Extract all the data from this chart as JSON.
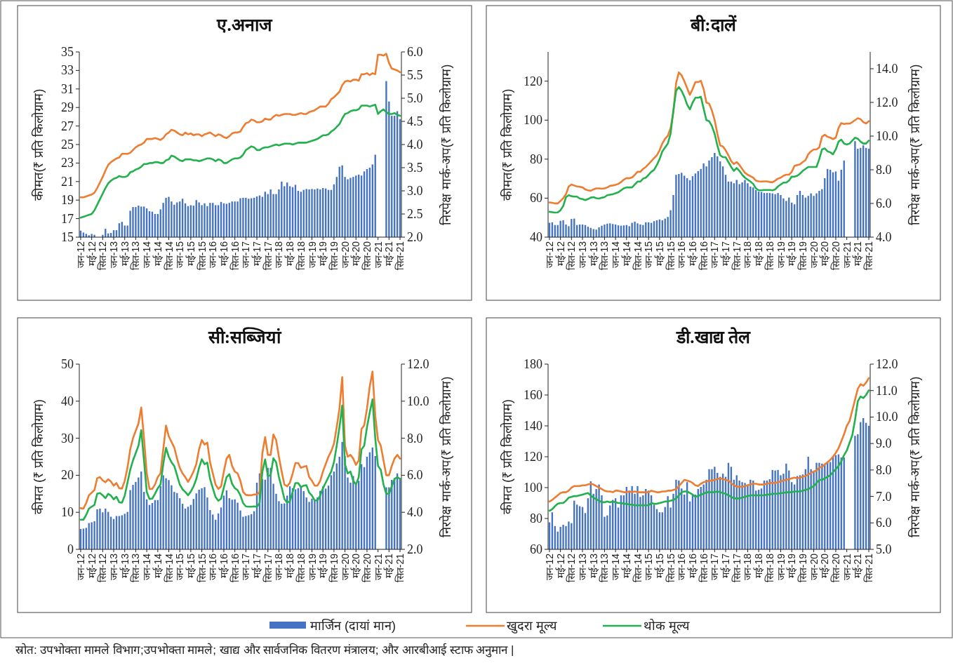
{
  "chart_data": [
    {
      "type": "bar",
      "title": "ए.अनाज",
      "ylabel": "कीमत(₹ प्रति किलोग्राम)",
      "y2label": "निरपेक्ष मार्क-अप(₹ प्रति किलोग्राम)",
      "legend": "bottom",
      "annotations": [
        "स्रोत: उपभोक्ता मामले विभाग;उपभोक्ता मामले; खाद्य और सार्वजनिक वितरण मंत्रालय; और आरबीआई स्टाफ अनुमान |"
      ],
      "categories": [
        "जन-12",
        null,
        null,
        null,
        "मई-12",
        null,
        null,
        null,
        "सित-12",
        null,
        null,
        null,
        "जन-13",
        null,
        null,
        null,
        "मई-13",
        null,
        null,
        null,
        "सित-13",
        null,
        null,
        null,
        "जन-14",
        null,
        null,
        null,
        "मई-14",
        null,
        null,
        null,
        "सित-14",
        null,
        null,
        null,
        "जन-15",
        null,
        null,
        null,
        "मई-15",
        null,
        null,
        null,
        "सित-15",
        null,
        null,
        null,
        "जन-16",
        null,
        null,
        null,
        "मई-16",
        null,
        null,
        null,
        "सित-16",
        null,
        null,
        null,
        "जन-17",
        null,
        null,
        null,
        "मई-17",
        null,
        null,
        null,
        "सित-17",
        null,
        null,
        null,
        "जन-18",
        null,
        null,
        null,
        "मई-18",
        null,
        null,
        null,
        "सित-18",
        null,
        null,
        null,
        "जन-19",
        null,
        null,
        null,
        "मई-19",
        null,
        null,
        null,
        "सित-19",
        null,
        null,
        null,
        "जन-20",
        null,
        null,
        null,
        "मई-20",
        null,
        null,
        null,
        "सित-20",
        null,
        null,
        null,
        "जन-21",
        null,
        null,
        null,
        "मई-21",
        null,
        null,
        null,
        "सित-21"
      ],
      "ylim": [
        15,
        35
      ],
      "yticks": [
        15,
        17,
        19,
        21,
        23,
        25,
        27,
        29,
        31,
        33,
        35
      ],
      "y2lim": [
        2,
        6
      ],
      "y2ticks": [
        {
          "value": 2,
          "label": "2.0"
        },
        2.5,
        {
          "value": 3,
          "label": "3.0"
        },
        3.5,
        {
          "value": 4,
          "label": "4.0"
        },
        4.5,
        {
          "value": 5,
          "label": "5.0"
        },
        5.5,
        {
          "value": 6,
          "label": "6.0"
        }
      ],
      "series": [
        {
          "name": "मार्जिन (दायां मान)",
          "type": "bar",
          "axis": "y2",
          "color": "#4472c4",
          "values": [
            2.14,
            2.1,
            2.07,
            2.04,
            2.07,
            2.05,
            null,
            null,
            2.05,
            2.18,
            2.08,
            2.09,
            2.15,
            2.15,
            2.3,
            2.33,
            2.25,
            2.25,
            2.57,
            2.65,
            2.65,
            2.68,
            2.66,
            2.66,
            2.62,
            2.56,
            2.55,
            2.5,
            2.5,
            2.6,
            2.74,
            2.85,
            2.87,
            2.77,
            2.7,
            2.75,
            2.77,
            2.83,
            2.73,
            2.67,
            2.69,
            2.68,
            2.8,
            2.75,
            2.69,
            2.73,
            2.67,
            2.74,
            2.74,
            2.69,
            2.69,
            2.76,
            2.73,
            2.72,
            2.74,
            2.77,
            2.77,
            2.77,
            2.84,
            2.85,
            2.85,
            2.83,
            2.84,
            2.85,
            2.88,
            2.9,
            2.87,
            2.98,
            2.93,
            3.03,
            2.93,
            2.93,
            3.03,
            3.2,
            3.1,
            3.18,
            3.1,
            3.08,
            3.13,
            3.0,
            2.98,
            3.02,
            3.04,
            3.03,
            3.04,
            3.03,
            3.05,
            3.03,
            3.06,
            3.05,
            3.02,
            3.02,
            3.14,
            3.3,
            3.52,
            3.55,
            3.3,
            3.25,
            3.28,
            3.3,
            3.33,
            3.35,
            3.33,
            3.42,
            3.47,
            3.5,
            3.57,
            3.78,
            null,
            null,
            null,
            5.37,
            4.93,
            4.62,
            4.62,
            4.72,
            4.55
          ]
        },
        {
          "name": "खुदरा मूल्य",
          "type": "line",
          "color": "#ed7d31",
          "values": [
            19.3,
            19.3,
            19.4,
            19.5,
            19.6,
            19.8,
            20.3,
            20.9,
            21.5,
            22.2,
            22.8,
            23.1,
            23.3,
            23.5,
            23.6,
            24.0,
            24.0,
            24.0,
            24.1,
            24.4,
            24.7,
            24.9,
            25.0,
            25.2,
            25.6,
            25.6,
            25.6,
            25.7,
            25.6,
            25.5,
            25.7,
            26.1,
            26.3,
            26.6,
            26.5,
            26.3,
            26.1,
            26.0,
            26.3,
            26.1,
            26.2,
            26.0,
            26.1,
            26.1,
            25.9,
            26.1,
            26.2,
            26.3,
            26.1,
            25.9,
            26.1,
            26.0,
            25.8,
            25.7,
            25.9,
            26.2,
            26.3,
            26.3,
            26.4,
            26.9,
            27.3,
            27.4,
            27.7,
            27.6,
            27.4,
            27.4,
            27.5,
            27.8,
            27.7,
            27.7,
            28.0,
            28.2,
            28.1,
            28.2,
            28.3,
            28.3,
            28.3,
            28.2,
            28.2,
            28.3,
            28.4,
            28.3,
            28.3,
            28.5,
            28.6,
            28.7,
            28.9,
            29.1,
            29.1,
            29.1,
            29.4,
            29.9,
            30.1,
            30.4,
            30.7,
            31.4,
            31.8,
            31.9,
            31.8,
            32.0,
            32.0,
            31.9,
            32.6,
            32.6,
            32.7,
            32.5,
            32.7,
            32.6,
            34.7,
            34.7,
            34.6,
            34.8,
            33.8,
            33.2,
            33.1,
            33.0,
            32.8
          ]
        },
        {
          "name": "थोक मूल्य",
          "type": "line",
          "color": "#22b14c",
          "values": [
            17.1,
            17.2,
            17.3,
            17.4,
            17.5,
            17.9,
            18.5,
            19.1,
            19.7,
            20.3,
            20.8,
            21.1,
            21.3,
            21.4,
            21.6,
            21.5,
            21.5,
            21.6,
            22.0,
            22.1,
            22.3,
            22.4,
            22.6,
            22.9,
            22.9,
            23.0,
            23.0,
            23.1,
            23.1,
            23.0,
            23.0,
            23.3,
            23.4,
            23.8,
            23.7,
            23.5,
            23.3,
            23.2,
            23.4,
            23.4,
            23.4,
            23.3,
            23.3,
            23.2,
            23.3,
            23.4,
            23.5,
            23.5,
            23.4,
            23.2,
            23.4,
            23.3,
            23.0,
            23.0,
            23.2,
            23.4,
            23.5,
            23.5,
            23.6,
            23.9,
            24.4,
            24.6,
            24.8,
            24.7,
            24.4,
            24.4,
            24.6,
            24.7,
            24.7,
            24.8,
            24.9,
            25.0,
            24.9,
            25.0,
            25.1,
            25.1,
            25.1,
            25.0,
            25.1,
            25.2,
            25.2,
            25.2,
            25.2,
            25.3,
            25.4,
            25.5,
            25.6,
            25.8,
            26.0,
            26.0,
            26.1,
            26.4,
            26.6,
            26.9,
            27.2,
            27.8,
            28.3,
            28.4,
            28.6,
            28.7,
            28.7,
            28.8,
            29.2,
            29.2,
            29.2,
            29.1,
            29.2,
            29.3,
            28.3,
            28.6,
            28.8,
            28.5,
            28.3,
            28.3,
            28.4,
            28.2,
            28.1
          ]
        }
      ]
    },
    {
      "type": "bar",
      "title": "बी:दालें",
      "ylabel": "कीमत(₹ प्रति किलोग्राम)",
      "y2label": "निरपेक्ष मार्क-अप(₹ प्रति किलोग्राम)",
      "categories": [
        "जन-12",
        null,
        null,
        null,
        "मई-12",
        null,
        null,
        null,
        "सित-12",
        null,
        null,
        null,
        "जन-13",
        null,
        null,
        null,
        "मई-13",
        null,
        null,
        null,
        "सित-13",
        null,
        null,
        null,
        "जन-14",
        null,
        null,
        null,
        "मई-14",
        null,
        null,
        null,
        "सित-14",
        null,
        null,
        null,
        "जन-15",
        null,
        null,
        null,
        "मई-15",
        null,
        null,
        null,
        "सित-15",
        null,
        null,
        null,
        "जन-16",
        null,
        null,
        null,
        "मई-16",
        null,
        null,
        null,
        "सित-16",
        null,
        null,
        null,
        "जन-17",
        null,
        null,
        null,
        "मई-17",
        null,
        null,
        null,
        "सित-17",
        null,
        null,
        null,
        "जन-18",
        null,
        null,
        null,
        "मई-18",
        null,
        null,
        null,
        "सित-18",
        null,
        null,
        null,
        "जन-19",
        null,
        null,
        null,
        "मई-19",
        null,
        null,
        null,
        "सित-19",
        null,
        null,
        null,
        "जन-20",
        null,
        null,
        null,
        "मई-20",
        null,
        null,
        null,
        "सित-20",
        null,
        null,
        null,
        "जन-21",
        null,
        null,
        null,
        "मई-21",
        null,
        null,
        null,
        "सित-21"
      ],
      "ylim": [
        40,
        135
      ],
      "yticks": [
        40,
        60,
        80,
        100,
        120
      ],
      "y2lim": [
        4,
        15
      ],
      "y2ticks": [
        {
          "value": 4,
          "label": "4.0"
        },
        {
          "value": 6,
          "label": "6.0"
        },
        {
          "value": 8,
          "label": "8.0"
        },
        {
          "value": 10,
          "label": "10.0"
        },
        {
          "value": 12,
          "label": "12.0"
        },
        {
          "value": 14,
          "label": "14.0"
        }
      ],
      "series": [
        {
          "type": "bar",
          "axis": "y2",
          "color": "#4472c4",
          "values": [
            4.85,
            4.88,
            4.72,
            4.72,
            4.97,
            5.0,
            4.75,
            4.65,
            5.08,
            5.1,
            4.72,
            4.75,
            4.75,
            4.72,
            4.62,
            4.55,
            4.48,
            4.45,
            4.58,
            4.68,
            4.75,
            4.8,
            4.82,
            4.78,
            4.75,
            4.7,
            4.68,
            4.7,
            4.72,
            4.65,
            4.85,
            4.92,
            4.82,
            4.75,
            4.72,
            4.88,
            4.88,
            4.85,
            4.95,
            5.0,
            5.05,
            5.0,
            5.1,
            5.2,
            5.6,
            6.5,
            7.7,
            7.75,
            7.82,
            7.65,
            7.5,
            7.38,
            7.62,
            7.78,
            7.92,
            8.05,
            8.38,
            8.2,
            8.55,
            8.75,
            9.0,
            8.8,
            8.5,
            8.2,
            7.7,
            7.3,
            7.3,
            7.2,
            7.4,
            7.15,
            7.25,
            7.4,
            7.2,
            7.0,
            6.95,
            6.8,
            6.7,
            6.68,
            6.62,
            6.62,
            6.62,
            6.6,
            6.55,
            6.62,
            6.5,
            6.3,
            6.15,
            6.35,
            6.05,
            5.95,
            6.5,
            6.75,
            6.5,
            6.35,
            6.45,
            6.6,
            6.45,
            6.6,
            6.75,
            6.85,
            7.5,
            8.05,
            8.0,
            7.85,
            7.9,
            7.35,
            8.0,
            8.55,
            null,
            null,
            null,
            9.7,
            9.25,
            9.3,
            9.45,
            9.3,
            9.25
          ]
        },
        {
          "type": "line",
          "color": "#ed7d31",
          "values": [
            57.8,
            57.6,
            57.3,
            57.3,
            58.5,
            60,
            62,
            66,
            67,
            66.5,
            66,
            65.8,
            65.5,
            64.5,
            64,
            63.8,
            64.5,
            65,
            65,
            64.8,
            65,
            65.5,
            66.3,
            66.5,
            66.8,
            67.3,
            68.2,
            69.5,
            70.3,
            70.2,
            70.6,
            72,
            73.5,
            73.5,
            75,
            76,
            77.5,
            79,
            80.5,
            82,
            84.5,
            88,
            90.5,
            92,
            96,
            104,
            119,
            124.5,
            123,
            120,
            116.5,
            113,
            116,
            119.5,
            119.5,
            120.2,
            116,
            109,
            108.5,
            105,
            100,
            93,
            87,
            86.5,
            84.5,
            82,
            79,
            77.5,
            78.5,
            77,
            75,
            73,
            72,
            71.3,
            70.5,
            69,
            68.6,
            68.5,
            68.6,
            68.6,
            68.3,
            68.1,
            69,
            70,
            70.5,
            71.5,
            72,
            72,
            73.5,
            76.5,
            77,
            77.3,
            78.5,
            79.5,
            82.5,
            84,
            85,
            85,
            86,
            91.5,
            92.5,
            91.5,
            91,
            90.3,
            91,
            96,
            98.5,
            98,
            98.3,
            98.2,
            99,
            100,
            101,
            100.5,
            99,
            98.3,
            99.5
          ]
        },
        {
          "type": "line",
          "color": "#22b14c",
          "values": [
            53,
            52.8,
            52.6,
            52.7,
            53.8,
            56,
            60.5,
            61.5,
            61,
            60.8,
            60.8,
            59.8,
            59.5,
            59,
            59.5,
            60.3,
            60.5,
            60,
            59.8,
            60.2,
            60.5,
            61.5,
            61.8,
            62,
            62.5,
            63,
            64,
            65,
            65.5,
            65.5,
            65.5,
            67,
            68.5,
            68.5,
            70,
            70.5,
            72,
            73.5,
            74.5,
            77,
            80,
            84,
            86,
            88,
            93,
            105,
            115,
            117,
            115,
            112,
            108,
            105.5,
            109,
            111.5,
            111.5,
            112,
            106,
            100,
            99.5,
            97,
            93,
            87,
            82,
            81,
            81,
            78.5,
            76,
            74,
            75.5,
            74,
            72,
            70.5,
            69.5,
            68.5,
            67.3,
            65,
            64,
            64,
            64.2,
            64.2,
            64.2,
            64,
            64.5,
            66,
            67,
            68,
            68,
            69,
            71,
            71,
            71.5,
            72.5,
            74,
            75,
            76,
            76,
            76,
            76,
            80,
            85,
            85.5,
            84,
            83.5,
            82.5,
            85,
            89,
            90,
            88,
            87.5,
            88,
            89.5,
            91,
            90.5,
            89,
            88,
            88,
            89.5
          ]
        }
      ]
    },
    {
      "type": "bar",
      "title": "सी:सब्जियां",
      "ylabel": "कीमत (₹ प्रति किलोग्राम)",
      "y2label": "निरपेक्ष मार्क-अप(₹ प्रति किलोग्राम)",
      "categories": [
        "जन-12",
        null,
        null,
        null,
        "मई-12",
        null,
        null,
        null,
        "सित-12",
        null,
        null,
        null,
        "जन-13",
        null,
        null,
        null,
        "मई-13",
        null,
        null,
        null,
        "सित-13",
        null,
        null,
        null,
        "जन-14",
        null,
        null,
        null,
        "मई-14",
        null,
        null,
        null,
        "सित-14",
        null,
        null,
        null,
        "जन-15",
        null,
        null,
        null,
        "मई-15",
        null,
        null,
        null,
        "सित-15",
        null,
        null,
        null,
        "जन-16",
        null,
        null,
        null,
        "मई-16",
        null,
        null,
        null,
        "सित-16",
        null,
        null,
        null,
        "जन-17",
        null,
        null,
        null,
        "मई-17",
        null,
        null,
        null,
        "सित-17",
        null,
        null,
        null,
        "जन-18",
        null,
        null,
        null,
        "मई-18",
        null,
        null,
        null,
        "सित-18",
        null,
        null,
        null,
        "जन-19",
        null,
        null,
        null,
        "मई-19",
        null,
        null,
        null,
        "सित-19",
        null,
        null,
        null,
        "जन-20",
        null,
        null,
        null,
        "मई-20",
        null,
        null,
        null,
        "सित-20",
        null,
        null,
        null,
        "जन-21",
        null,
        null,
        null,
        "मई-21",
        null,
        null,
        null,
        "सित-21"
      ],
      "ylim": [
        0,
        50
      ],
      "yticks": [
        0,
        10,
        20,
        30,
        40,
        50
      ],
      "y2lim": [
        2,
        12
      ],
      "y2ticks": [
        {
          "value": 2,
          "label": "2.0"
        },
        {
          "value": 4,
          "label": "4.0"
        },
        {
          "value": 6,
          "label": "6.0"
        },
        {
          "value": 8,
          "label": "8.0"
        },
        {
          "value": 10,
          "label": "10.0"
        },
        {
          "value": 12,
          "label": "12.0"
        }
      ],
      "series": [
        {
          "type": "bar",
          "axis": "y2",
          "color": "#4472c4",
          "values": [
            3.1,
            3.12,
            3.16,
            3.42,
            3.46,
            3.52,
            4.16,
            4.2,
            4.0,
            4.2,
            4.02,
            3.76,
            3.64,
            3.8,
            3.8,
            3.84,
            3.92,
            4.02,
            5.2,
            5.48,
            5.64,
            5.88,
            6.2,
            5.1,
            4.7,
            4.4,
            4.5,
            4.66,
            4.66,
            5.42,
            6.0,
            5.84,
            5.74,
            5.46,
            5.1,
            5.04,
            4.76,
            4.46,
            4.2,
            4.3,
            4.4,
            4.72,
            5.02,
            5.22,
            5.3,
            5.36,
            4.8,
            4.12,
            3.88,
            3.6,
            3.94,
            4.26,
            4.9,
            5.18,
            4.76,
            4.68,
            4.7,
            4.52,
            4.1,
            3.76,
            3.8,
            3.84,
            3.9,
            4.06,
            5.6,
            6.1,
            5.8,
            5.76,
            6.4,
            6.4,
            5.54,
            5.0,
            4.6,
            4.46,
            4.48,
            4.9,
            5.4,
            5.3,
            5.24,
            5.3,
            5.36,
            5.14,
            4.8,
            4.56,
            4.74,
            4.64,
            4.8,
            5.16,
            5.4,
            5.28,
            5.44,
            6.0,
            6.2,
            6.64,
            7.0,
            7.8,
            7.04,
            5.88,
            5.6,
            5.96,
            5.5,
            5.7,
            6.6,
            6.44,
            7.0,
            7.24,
            7.5,
            7.04,
            null,
            null,
            null,
            5.35,
            5.35,
            5.75,
            5.85,
            6.1,
            5.85
          ]
        },
        {
          "type": "line",
          "color": "#ed7d31",
          "values": [
            11.1,
            11.0,
            12.5,
            14.6,
            15.3,
            16.0,
            19.2,
            19.5,
            18.6,
            18.1,
            18.9,
            18.3,
            17.2,
            17.9,
            16.5,
            16.4,
            18.5,
            22,
            27,
            30,
            32,
            34,
            38.3,
            30,
            20.5,
            16.3,
            16.3,
            17.5,
            19.5,
            20.5,
            27,
            33.4,
            30.5,
            29,
            27.5,
            24.5,
            22,
            20.5,
            19.5,
            18.2,
            19.5,
            21,
            23,
            27,
            29.5,
            28.3,
            28.8,
            23.5,
            20.5,
            17.5,
            16.3,
            17,
            21,
            24.5,
            25.5,
            22.5,
            21,
            20.5,
            18.5,
            15.5,
            14.7,
            14.6,
            14.6,
            14.8,
            14.8,
            15.5,
            26,
            30.3,
            25.5,
            25.5,
            31,
            29.5,
            25,
            21,
            17.5,
            17,
            18,
            20.5,
            23.3,
            23.3,
            22,
            22.3,
            22.5,
            19.5,
            18.5,
            17.2,
            17.2,
            18.5,
            21,
            23,
            25,
            26.5,
            28.5,
            33,
            38,
            46.5,
            28,
            25,
            25.5,
            24.5,
            22.8,
            24,
            32.5,
            33.5,
            38,
            44,
            48,
            36,
            29.5,
            28,
            24,
            20,
            20,
            22.5,
            24.5,
            25.5,
            24.5
          ]
        },
        {
          "type": "line",
          "color": "#22b14c",
          "values": [
            8.0,
            8.0,
            9.3,
            11,
            11.5,
            12,
            15,
            15.2,
            14.6,
            13.8,
            15,
            14.5,
            13.5,
            14.2,
            12.7,
            12.6,
            14.5,
            18,
            21.5,
            24,
            26,
            28,
            32.2,
            24,
            15.5,
            13.6,
            13.7,
            15,
            16.5,
            17.5,
            23,
            27.4,
            25,
            23.5,
            22.5,
            20,
            17.5,
            16.2,
            15.5,
            14.6,
            15.6,
            17,
            19,
            22,
            24.3,
            23,
            23.4,
            19,
            16.5,
            14.1,
            13.1,
            13.7,
            16.7,
            19.5,
            20.3,
            17.7,
            16.5,
            16.0,
            14.6,
            12.5,
            11.6,
            11.5,
            11.5,
            11.6,
            11.5,
            12.5,
            21,
            24.3,
            19.8,
            20,
            24.6,
            23.5,
            19.5,
            16.7,
            13.6,
            12.6,
            13,
            15.5,
            17.9,
            17.9,
            16.8,
            17.2,
            17.3,
            15.3,
            14.5,
            13.2,
            13.2,
            14.5,
            16.5,
            18,
            19.5,
            21,
            23.5,
            28,
            33,
            38.8,
            23,
            20.5,
            21,
            18.5,
            17.5,
            19.5,
            27,
            28,
            33,
            37,
            40.5,
            30,
            22.5,
            21.5,
            17.5,
            15,
            15,
            17,
            19,
            19.5,
            19
          ]
        }
      ]
    },
    {
      "type": "bar",
      "title": "डी.खाद्य तेल",
      "ylabel": "कीमत (₹ प्रति किलोग्राम)",
      "y2label": "निरपेक्ष मार्क-अप(₹ प्रति किलोग्राम)",
      "categories": [
        "जन-12",
        null,
        null,
        null,
        "मई-12",
        null,
        null,
        null,
        "सित-12",
        null,
        null,
        null,
        "जन-13",
        null,
        null,
        null,
        "मई-13",
        null,
        null,
        null,
        "सित-13",
        null,
        null,
        null,
        "जन-14",
        null,
        null,
        null,
        "मई-14",
        null,
        null,
        null,
        "सित-14",
        null,
        null,
        null,
        "जन-15",
        null,
        null,
        null,
        "मई-15",
        null,
        null,
        null,
        "सित-15",
        null,
        null,
        null,
        "जन-16",
        null,
        null,
        null,
        "मई-16",
        null,
        null,
        null,
        "सित-16",
        null,
        null,
        null,
        "जन-17",
        null,
        null,
        null,
        "मई-17",
        null,
        null,
        null,
        "सित-17",
        null,
        null,
        null,
        "जन-18",
        null,
        null,
        null,
        "मई-18",
        null,
        null,
        null,
        "सित-18",
        null,
        null,
        null,
        "जन-19",
        null,
        null,
        null,
        "मई-19",
        null,
        null,
        null,
        "सित-19",
        null,
        null,
        null,
        "जन-20",
        null,
        null,
        null,
        "मई-20",
        null,
        null,
        null,
        "सित-20",
        null,
        null,
        null,
        "जन-21",
        null,
        null,
        null,
        "मई-21",
        null,
        null,
        null,
        "सित-21"
      ],
      "ylim": [
        60,
        180
      ],
      "yticks": [
        60,
        80,
        100,
        120,
        140,
        160,
        180
      ],
      "y2lim": [
        5,
        12
      ],
      "y2ticks": [
        {
          "value": 5,
          "label": "5.0"
        },
        {
          "value": 6,
          "label": "6.0"
        },
        {
          "value": 7,
          "label": "7.0"
        },
        {
          "value": 8,
          "label": "8.0"
        },
        {
          "value": 9,
          "label": "9.0"
        },
        {
          "value": 10,
          "label": "10.0"
        },
        {
          "value": 11,
          "label": "11.0"
        },
        {
          "value": 12,
          "label": "12.0"
        }
      ],
      "series": [
        {
          "type": "bar",
          "axis": "y2",
          "color": "#4472c4",
          "values": [
            6.02,
            6.4,
            5.88,
            5.67,
            5.85,
            5.93,
            5.88,
            6.05,
            5.99,
            6.84,
            6.69,
            6.63,
            6.6,
            6.37,
            6.93,
            7.57,
            7.1,
            7.28,
            7.45,
            7.04,
            6.23,
            6.28,
            6.66,
            6.87,
            6.93,
            6.58,
            7.04,
            7.04,
            7.36,
            7.22,
            7.39,
            7.1,
            7.39,
            6.98,
            7.04,
            7.28,
            7.22,
            7.04,
            6.69,
            6.52,
            6.4,
            6.4,
            6.6,
            7.01,
            6.58,
            7.1,
            7.63,
            7.6,
            7.3,
            7.07,
            7.54,
            6.81,
            7.04,
            7.07,
            7.28,
            7.36,
            7.45,
            7.63,
            8.03,
            8.03,
            8.12,
            7.89,
            7.74,
            7.86,
            7.74,
            8.27,
            8.12,
            7.63,
            7.8,
            7.6,
            7.54,
            7.51,
            7.45,
            7.63,
            7.6,
            7.22,
            7.25,
            7.3,
            7.6,
            7.6,
            7.65,
            8.0,
            7.98,
            8.0,
            7.8,
            7.86,
            8.24,
            7.98,
            7.54,
            7.45,
            7.77,
            7.8,
            7.83,
            8.03,
            8.5,
            8.03,
            7.92,
            8.27,
            8.27,
            8.24,
            8.24,
            8.3,
            8.3,
            8.53,
            8.56,
            8.59,
            8.47,
            8.47,
            null,
            null,
            null,
            9.29,
            9.35,
            9.81,
            9.96,
            9.78,
            9.67
          ]
        },
        {
          "type": "line",
          "color": "#ed7d31",
          "values": [
            91,
            92,
            93.5,
            95,
            96.5,
            97,
            97,
            98,
            100,
            101,
            101,
            101,
            101.5,
            101.5,
            102,
            102.5,
            102,
            101,
            100,
            99,
            98,
            97.5,
            97.5,
            97,
            98,
            98,
            97.5,
            97,
            97,
            97.5,
            97,
            97.5,
            97,
            97,
            97,
            97,
            97,
            98,
            97.5,
            97,
            97,
            97.5,
            97.5,
            98,
            98,
            98.5,
            99,
            101,
            103,
            105,
            104.5,
            104,
            103,
            101.5,
            101,
            102.5,
            103.5,
            104,
            104.5,
            104.5,
            105,
            105.5,
            106,
            105.5,
            105,
            104.5,
            103,
            101.5,
            100.5,
            100.5,
            100.5,
            101,
            101.5,
            102,
            102.5,
            102.5,
            102,
            102,
            102,
            102.5,
            103,
            103,
            103,
            103.5,
            104,
            104.5,
            105,
            105.5,
            106,
            106.5,
            106,
            106.5,
            107,
            107.5,
            108.5,
            109.5,
            110.5,
            111,
            113,
            113.5,
            115,
            116.5,
            118,
            120,
            122.5,
            125.5,
            130,
            134.5,
            140,
            143,
            150,
            157,
            164,
            167,
            166,
            168,
            171
          ]
        },
        {
          "type": "line",
          "color": "#22b14c",
          "values": [
            85,
            86,
            88,
            89.5,
            90,
            90,
            91.5,
            93.5,
            94,
            94.5,
            94.5,
            95,
            95.5,
            96,
            96.5,
            95,
            93.5,
            92.5,
            91.5,
            90.5,
            90.5,
            91,
            90.5,
            91,
            90.5,
            90,
            90,
            89.5,
            89.5,
            89,
            89,
            88.5,
            88.5,
            88.5,
            88.5,
            88.5,
            88.5,
            90,
            89.5,
            89.5,
            90,
            90.5,
            91,
            91,
            91.5,
            92,
            93,
            95,
            97,
            97.5,
            97.5,
            96.5,
            95.5,
            94,
            94.5,
            95.5,
            96,
            97,
            97,
            97,
            97,
            97.5,
            97,
            96.5,
            96,
            95,
            94,
            93,
            93,
            93,
            93.5,
            94,
            94.5,
            95,
            95,
            95,
            95,
            95,
            95,
            95.5,
            95.5,
            96,
            96,
            96,
            96.5,
            96.5,
            97,
            97,
            97,
            97.5,
            97.5,
            97.5,
            98,
            98.5,
            99,
            100,
            101,
            103,
            105,
            105,
            106,
            107,
            108,
            110,
            112,
            114,
            117,
            121,
            124,
            129,
            134,
            144,
            156,
            159,
            158,
            160,
            163
          ]
        }
      ]
    }
  ]
}
